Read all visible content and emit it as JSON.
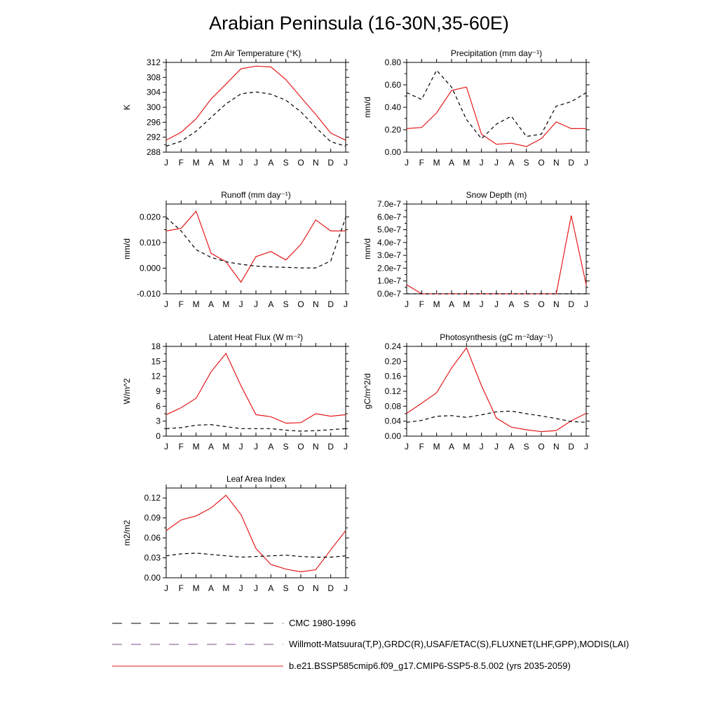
{
  "title": "Arabian Peninsula (16-30N,35-60E)",
  "colors": {
    "model": "#e41a1c",
    "cmc": "#000000",
    "obs": "#000000",
    "axis": "#000000"
  },
  "legend": [
    {
      "label": "CMC 1980-1996",
      "style": "dash"
    },
    {
      "label": "Willmott-Matsuura(T,P),GRDC(R),USAF/ETAC(S),FLUXNET(LHF,GPP),MODIS(LAI)",
      "style": "dash-mixed"
    },
    {
      "label": "b.e21.BSSP585cmip6.f09_g17.CMIP6-SSP5-8.5.002 (yrs 2035-2059)",
      "style": "solid"
    }
  ],
  "chart_data": [
    {
      "type": "line",
      "title": "2m Air Temperature (°K)",
      "ylabel": "K",
      "categories": [
        "J",
        "F",
        "M",
        "A",
        "M",
        "J",
        "J",
        "A",
        "S",
        "O",
        "N",
        "D",
        "J"
      ],
      "ylim": [
        288,
        312
      ],
      "yticks": [
        288,
        292,
        296,
        300,
        304,
        308,
        312
      ],
      "ytick_labels": [
        "288",
        "292",
        "296",
        "300",
        "304",
        "308",
        "312"
      ],
      "series": [
        {
          "role": "model",
          "values": [
            291.2,
            293.3,
            296.9,
            302.2,
            306.2,
            310.3,
            311.0,
            310.8,
            307.4,
            302.7,
            298.1,
            293.1,
            291.2
          ]
        },
        {
          "role": "obs",
          "values": [
            289.6,
            290.9,
            293.6,
            297.3,
            300.9,
            303.6,
            304.1,
            303.5,
            301.9,
            298.8,
            294.6,
            290.8,
            289.6
          ]
        }
      ]
    },
    {
      "type": "line",
      "title": "Precipitation (mm day⁻¹)",
      "ylabel": "mm/d",
      "categories": [
        "J",
        "F",
        "M",
        "A",
        "M",
        "J",
        "J",
        "A",
        "S",
        "O",
        "N",
        "D",
        "J"
      ],
      "ylim": [
        0,
        0.8
      ],
      "yticks": [
        0,
        0.2,
        0.4,
        0.6,
        0.8
      ],
      "ytick_labels": [
        "0.00",
        "0.20",
        "0.40",
        "0.60",
        "0.80"
      ],
      "series": [
        {
          "role": "model",
          "values": [
            0.21,
            0.22,
            0.35,
            0.55,
            0.58,
            0.16,
            0.07,
            0.08,
            0.05,
            0.12,
            0.27,
            0.21,
            0.21
          ]
        },
        {
          "role": "obs",
          "values": [
            0.53,
            0.47,
            0.73,
            0.58,
            0.29,
            0.12,
            0.25,
            0.32,
            0.14,
            0.16,
            0.41,
            0.45,
            0.53
          ]
        }
      ]
    },
    {
      "type": "line",
      "title": "Runoff (mm day⁻¹)",
      "ylabel": "mm/d",
      "categories": [
        "J",
        "F",
        "M",
        "A",
        "M",
        "J",
        "J",
        "A",
        "S",
        "O",
        "N",
        "D",
        "J"
      ],
      "ylim": [
        -0.01,
        0.025
      ],
      "yticks": [
        -0.01,
        0,
        0.01,
        0.02
      ],
      "ytick_labels": [
        "-0.010",
        "0.000",
        "0.010",
        "0.020"
      ],
      "series": [
        {
          "role": "model",
          "values": [
            0.0145,
            0.0155,
            0.0222,
            0.0058,
            0.0025,
            -0.0055,
            0.0045,
            0.0065,
            0.0032,
            0.0092,
            0.0188,
            0.0145,
            0.0145
          ]
        },
        {
          "role": "obs",
          "values": [
            0.0198,
            0.0145,
            0.0072,
            0.0042,
            0.0025,
            0.0015,
            0.0008,
            0.0005,
            0.0003,
            0.0001,
            0.0001,
            0.0028,
            0.0198
          ]
        }
      ]
    },
    {
      "type": "line",
      "title": "Snow Depth (m)",
      "ylabel": "mm/d",
      "categories": [
        "J",
        "F",
        "M",
        "A",
        "M",
        "J",
        "J",
        "A",
        "S",
        "O",
        "N",
        "D",
        "J"
      ],
      "ylim": [
        0,
        7e-07
      ],
      "yticks": [
        0,
        1e-07,
        2e-07,
        3e-07,
        4e-07,
        5e-07,
        6e-07,
        7e-07
      ],
      "ytick_labels": [
        "0.0e-7",
        "1.0e-7",
        "2.0e-7",
        "3.0e-7",
        "4.0e-7",
        "5.0e-7",
        "6.0e-7",
        "7.0e-7"
      ],
      "series": [
        {
          "role": "model",
          "values": [
            7e-08,
            0,
            0,
            0,
            0,
            0,
            0,
            0,
            0,
            0,
            0,
            6.1e-07,
            7e-08
          ]
        },
        {
          "role": "obs",
          "values": [
            0,
            0,
            0,
            0,
            0,
            0,
            0,
            0,
            0,
            0,
            0,
            0,
            0
          ]
        }
      ]
    },
    {
      "type": "line",
      "title": "Latent Heat Flux (W m⁻²)",
      "ylabel": "W/m^2",
      "categories": [
        "J",
        "F",
        "M",
        "A",
        "M",
        "J",
        "J",
        "A",
        "S",
        "O",
        "N",
        "D",
        "J"
      ],
      "ylim": [
        0,
        18
      ],
      "yticks": [
        0,
        3,
        6,
        9,
        12,
        15,
        18
      ],
      "ytick_labels": [
        "0",
        "3",
        "6",
        "9",
        "12",
        "15",
        "18"
      ],
      "series": [
        {
          "role": "model",
          "values": [
            4.3,
            5.7,
            7.6,
            12.9,
            16.6,
            10.1,
            4.3,
            3.9,
            2.6,
            2.7,
            4.5,
            4.0,
            4.3
          ]
        },
        {
          "role": "obs",
          "values": [
            1.5,
            1.7,
            2.2,
            2.3,
            1.9,
            1.5,
            1.5,
            1.5,
            1.2,
            1.0,
            1.1,
            1.3,
            1.5
          ]
        }
      ]
    },
    {
      "type": "line",
      "title": "Photosynthesis (gC m⁻²day⁻¹)",
      "ylabel": "gC/m^2/d",
      "categories": [
        "J",
        "F",
        "M",
        "A",
        "M",
        "J",
        "J",
        "A",
        "S",
        "O",
        "N",
        "D",
        "J"
      ],
      "ylim": [
        0,
        0.24
      ],
      "yticks": [
        0,
        0.04,
        0.08,
        0.12,
        0.16,
        0.2,
        0.24
      ],
      "ytick_labels": [
        "0.00",
        "0.04",
        "0.08",
        "0.12",
        "0.16",
        "0.20",
        "0.24"
      ],
      "series": [
        {
          "role": "model",
          "values": [
            0.061,
            0.088,
            0.116,
            0.182,
            0.236,
            0.135,
            0.048,
            0.024,
            0.017,
            0.012,
            0.015,
            0.041,
            0.061
          ]
        },
        {
          "role": "obs",
          "values": [
            0.037,
            0.042,
            0.053,
            0.055,
            0.05,
            0.057,
            0.065,
            0.067,
            0.06,
            0.054,
            0.047,
            0.039,
            0.037
          ]
        }
      ]
    },
    {
      "type": "line",
      "title": "Leaf Area Index",
      "ylabel": "m2/m2",
      "categories": [
        "J",
        "F",
        "M",
        "A",
        "M",
        "J",
        "J",
        "A",
        "S",
        "O",
        "N",
        "D",
        "J"
      ],
      "ylim": [
        0,
        0.135
      ],
      "yticks": [
        0,
        0.03,
        0.06,
        0.09,
        0.12
      ],
      "ytick_labels": [
        "0.00",
        "0.03",
        "0.06",
        "0.09",
        "0.12"
      ],
      "series": [
        {
          "role": "model",
          "values": [
            0.071,
            0.087,
            0.093,
            0.105,
            0.124,
            0.095,
            0.044,
            0.02,
            0.013,
            0.009,
            0.012,
            0.042,
            0.071
          ]
        },
        {
          "role": "obs",
          "values": [
            0.033,
            0.036,
            0.037,
            0.035,
            0.033,
            0.031,
            0.032,
            0.033,
            0.034,
            0.032,
            0.031,
            0.031,
            0.033
          ]
        }
      ]
    }
  ]
}
